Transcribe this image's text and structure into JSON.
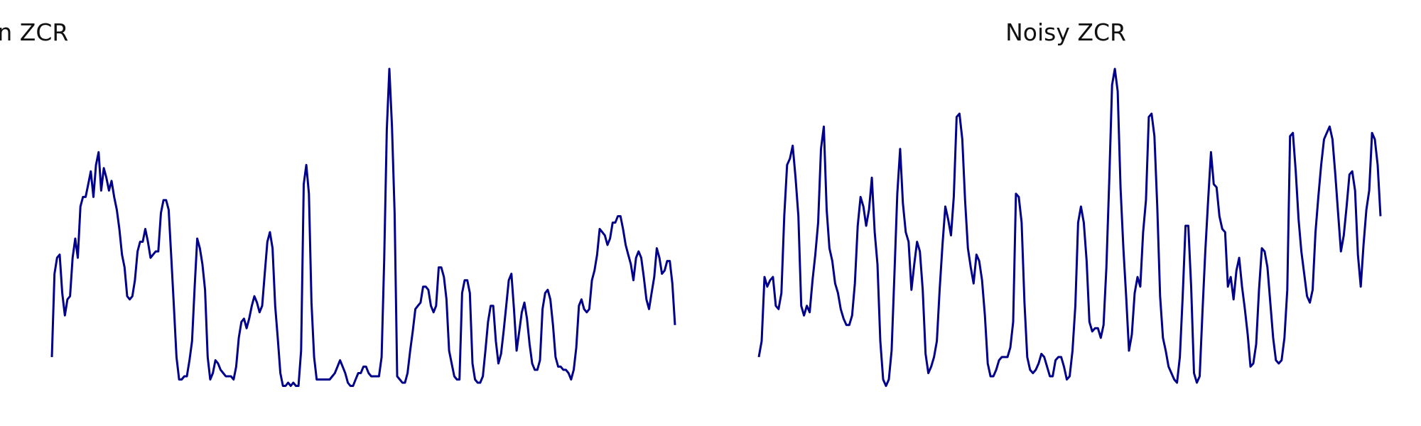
{
  "colors": {
    "line": "#00008b",
    "background": "#ffffff",
    "title": "#111111"
  },
  "chart_data": [
    {
      "type": "line",
      "title": "Clean ZCR",
      "xlabel": "",
      "ylabel": "",
      "grid": false,
      "axes_visible": false,
      "series": [
        {
          "values": [
            0.1,
            0.36,
            0.41,
            0.42,
            0.3,
            0.23,
            0.28,
            0.29,
            0.41,
            0.47,
            0.41,
            0.57,
            0.6,
            0.6,
            0.64,
            0.68,
            0.6,
            0.7,
            0.74,
            0.62,
            0.69,
            0.66,
            0.62,
            0.65,
            0.6,
            0.56,
            0.5,
            0.42,
            0.38,
            0.29,
            0.28,
            0.29,
            0.34,
            0.43,
            0.46,
            0.46,
            0.5,
            0.46,
            0.41,
            0.42,
            0.43,
            0.43,
            0.55,
            0.59,
            0.59,
            0.56,
            0.41,
            0.26,
            0.1,
            0.03,
            0.03,
            0.04,
            0.04,
            0.09,
            0.15,
            0.32,
            0.47,
            0.44,
            0.39,
            0.31,
            0.1,
            0.03,
            0.05,
            0.09,
            0.08,
            0.06,
            0.05,
            0.04,
            0.04,
            0.04,
            0.03,
            0.07,
            0.16,
            0.21,
            0.22,
            0.19,
            0.22,
            0.26,
            0.29,
            0.27,
            0.24,
            0.26,
            0.36,
            0.46,
            0.49,
            0.44,
            0.26,
            0.16,
            0.05,
            0.01,
            0.01,
            0.02,
            0.01,
            0.02,
            0.01,
            0.01,
            0.12,
            0.64,
            0.7,
            0.61,
            0.27,
            0.1,
            0.03,
            0.03,
            0.03,
            0.03,
            0.03,
            0.03,
            0.04,
            0.05,
            0.07,
            0.09,
            0.07,
            0.05,
            0.02,
            0.01,
            0.01,
            0.03,
            0.05,
            0.05,
            0.07,
            0.07,
            0.05,
            0.04,
            0.04,
            0.04,
            0.04,
            0.1,
            0.4,
            0.81,
            1.0,
            0.82,
            0.55,
            0.04,
            0.03,
            0.02,
            0.02,
            0.05,
            0.12,
            0.18,
            0.25,
            0.26,
            0.27,
            0.32,
            0.32,
            0.31,
            0.26,
            0.24,
            0.26,
            0.38,
            0.38,
            0.35,
            0.28,
            0.12,
            0.08,
            0.04,
            0.03,
            0.03,
            0.3,
            0.34,
            0.34,
            0.3,
            0.08,
            0.03,
            0.02,
            0.02,
            0.04,
            0.12,
            0.21,
            0.26,
            0.26,
            0.15,
            0.08,
            0.11,
            0.18,
            0.26,
            0.34,
            0.36,
            0.25,
            0.12,
            0.18,
            0.24,
            0.27,
            0.22,
            0.14,
            0.08,
            0.06,
            0.06,
            0.09,
            0.25,
            0.3,
            0.31,
            0.28,
            0.2,
            0.1,
            0.07,
            0.07,
            0.06,
            0.06,
            0.05,
            0.03,
            0.06,
            0.13,
            0.26,
            0.28,
            0.25,
            0.24,
            0.25,
            0.34,
            0.37,
            0.42,
            0.5,
            0.49,
            0.48,
            0.45,
            0.47,
            0.52,
            0.52,
            0.54,
            0.54,
            0.5,
            0.45,
            0.42,
            0.39,
            0.34,
            0.41,
            0.43,
            0.41,
            0.35,
            0.28,
            0.25,
            0.3,
            0.35,
            0.44,
            0.41,
            0.36,
            0.37,
            0.4,
            0.4,
            0.33,
            0.2
          ]
        }
      ]
    },
    {
      "type": "line",
      "title": "Noisy ZCR",
      "xlabel": "",
      "ylabel": "",
      "grid": false,
      "axes_visible": false,
      "series": [
        {
          "values": [
            0.1,
            0.15,
            0.35,
            0.32,
            0.34,
            0.35,
            0.26,
            0.25,
            0.3,
            0.54,
            0.7,
            0.72,
            0.76,
            0.66,
            0.54,
            0.26,
            0.23,
            0.26,
            0.24,
            0.34,
            0.42,
            0.52,
            0.75,
            0.82,
            0.56,
            0.44,
            0.4,
            0.33,
            0.3,
            0.25,
            0.22,
            0.2,
            0.2,
            0.23,
            0.33,
            0.51,
            0.6,
            0.57,
            0.51,
            0.56,
            0.66,
            0.49,
            0.39,
            0.15,
            0.03,
            0.01,
            0.03,
            0.12,
            0.36,
            0.61,
            0.75,
            0.58,
            0.49,
            0.46,
            0.31,
            0.39,
            0.46,
            0.43,
            0.31,
            0.11,
            0.05,
            0.07,
            0.1,
            0.15,
            0.31,
            0.45,
            0.57,
            0.53,
            0.48,
            0.6,
            0.85,
            0.86,
            0.78,
            0.59,
            0.44,
            0.38,
            0.33,
            0.42,
            0.4,
            0.34,
            0.23,
            0.08,
            0.04,
            0.04,
            0.06,
            0.09,
            0.1,
            0.1,
            0.1,
            0.13,
            0.21,
            0.61,
            0.6,
            0.52,
            0.27,
            0.1,
            0.06,
            0.05,
            0.06,
            0.08,
            0.11,
            0.1,
            0.07,
            0.04,
            0.04,
            0.09,
            0.1,
            0.1,
            0.07,
            0.03,
            0.04,
            0.12,
            0.26,
            0.52,
            0.57,
            0.52,
            0.4,
            0.21,
            0.18,
            0.19,
            0.19,
            0.16,
            0.2,
            0.38,
            0.65,
            0.95,
            1.0,
            0.93,
            0.63,
            0.44,
            0.29,
            0.12,
            0.17,
            0.3,
            0.35,
            0.32,
            0.49,
            0.59,
            0.85,
            0.86,
            0.79,
            0.57,
            0.29,
            0.16,
            0.12,
            0.07,
            0.05,
            0.03,
            0.02,
            0.1,
            0.29,
            0.51,
            0.51,
            0.32,
            0.05,
            0.02,
            0.04,
            0.24,
            0.43,
            0.59,
            0.74,
            0.64,
            0.63,
            0.54,
            0.5,
            0.49,
            0.32,
            0.35,
            0.28,
            0.37,
            0.41,
            0.32,
            0.25,
            0.17,
            0.07,
            0.08,
            0.14,
            0.31,
            0.44,
            0.43,
            0.38,
            0.27,
            0.16,
            0.09,
            0.08,
            0.09,
            0.16,
            0.31,
            0.79,
            0.8,
            0.68,
            0.53,
            0.43,
            0.36,
            0.29,
            0.27,
            0.31,
            0.49,
            0.6,
            0.7,
            0.78,
            0.8,
            0.82,
            0.78,
            0.67,
            0.55,
            0.43,
            0.48,
            0.57,
            0.67,
            0.68,
            0.62,
            0.42,
            0.32,
            0.45,
            0.56,
            0.62,
            0.8,
            0.78,
            0.7,
            0.54
          ]
        }
      ]
    }
  ]
}
